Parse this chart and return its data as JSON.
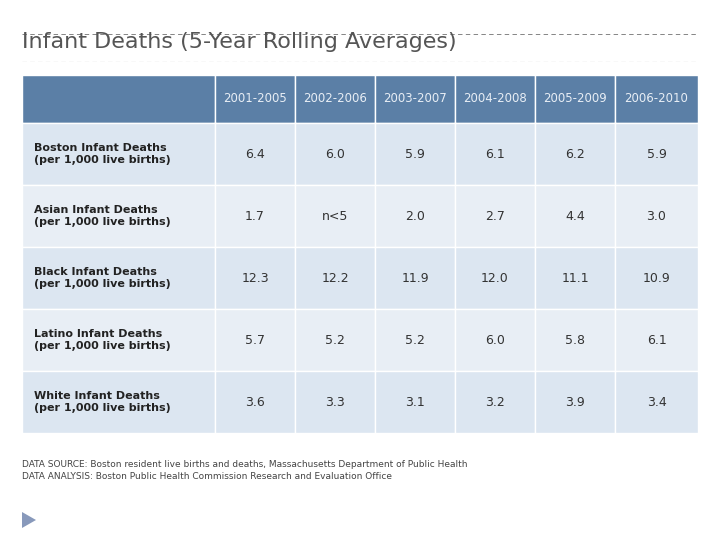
{
  "title": "Infant Deaths (5-Year Rolling Averages)",
  "columns": [
    "",
    "2001-2005",
    "2002-2006",
    "2003-2007",
    "2004-2008",
    "2005-2009",
    "2006-2010"
  ],
  "rows": [
    {
      "label": "Boston Infant Deaths\n(per 1,000 live births)",
      "values": [
        "6.4",
        "6.0",
        "5.9",
        "6.1",
        "6.2",
        "5.9"
      ]
    },
    {
      "label": "Asian Infant Deaths\n(per 1,000 live births)",
      "values": [
        "1.7",
        "n<5",
        "2.0",
        "2.7",
        "4.4",
        "3.0"
      ]
    },
    {
      "label": "Black Infant Deaths\n(per 1,000 live births)",
      "values": [
        "12.3",
        "12.2",
        "11.9",
        "12.0",
        "11.1",
        "10.9"
      ]
    },
    {
      "label": "Latino Infant Deaths\n(per 1,000 live births)",
      "values": [
        "5.7",
        "5.2",
        "5.2",
        "6.0",
        "5.8",
        "6.1"
      ]
    },
    {
      "label": "White Infant Deaths\n(per 1,000 live births)",
      "values": [
        "3.6",
        "3.3",
        "3.1",
        "3.2",
        "3.9",
        "3.4"
      ]
    }
  ],
  "header_bg": "#5b7fa6",
  "header_text": "#e8eef5",
  "row_bg_even": "#dce6f1",
  "row_bg_odd": "#e8eef5",
  "border_color": "#ffffff",
  "title_color": "#555555",
  "label_text_color": "#222222",
  "value_text_color": "#333333",
  "footnote_line1": "DATA SOURCE: Boston resident live births and deaths, Massachusetts Department of Public Health",
  "footnote_line2": "DATA ANALYSIS: Boston Public Health Commission Research and Evaluation Office",
  "bg_color": "#ffffff",
  "title_separator_color": "#888888",
  "triangle_color": "#8899bb"
}
